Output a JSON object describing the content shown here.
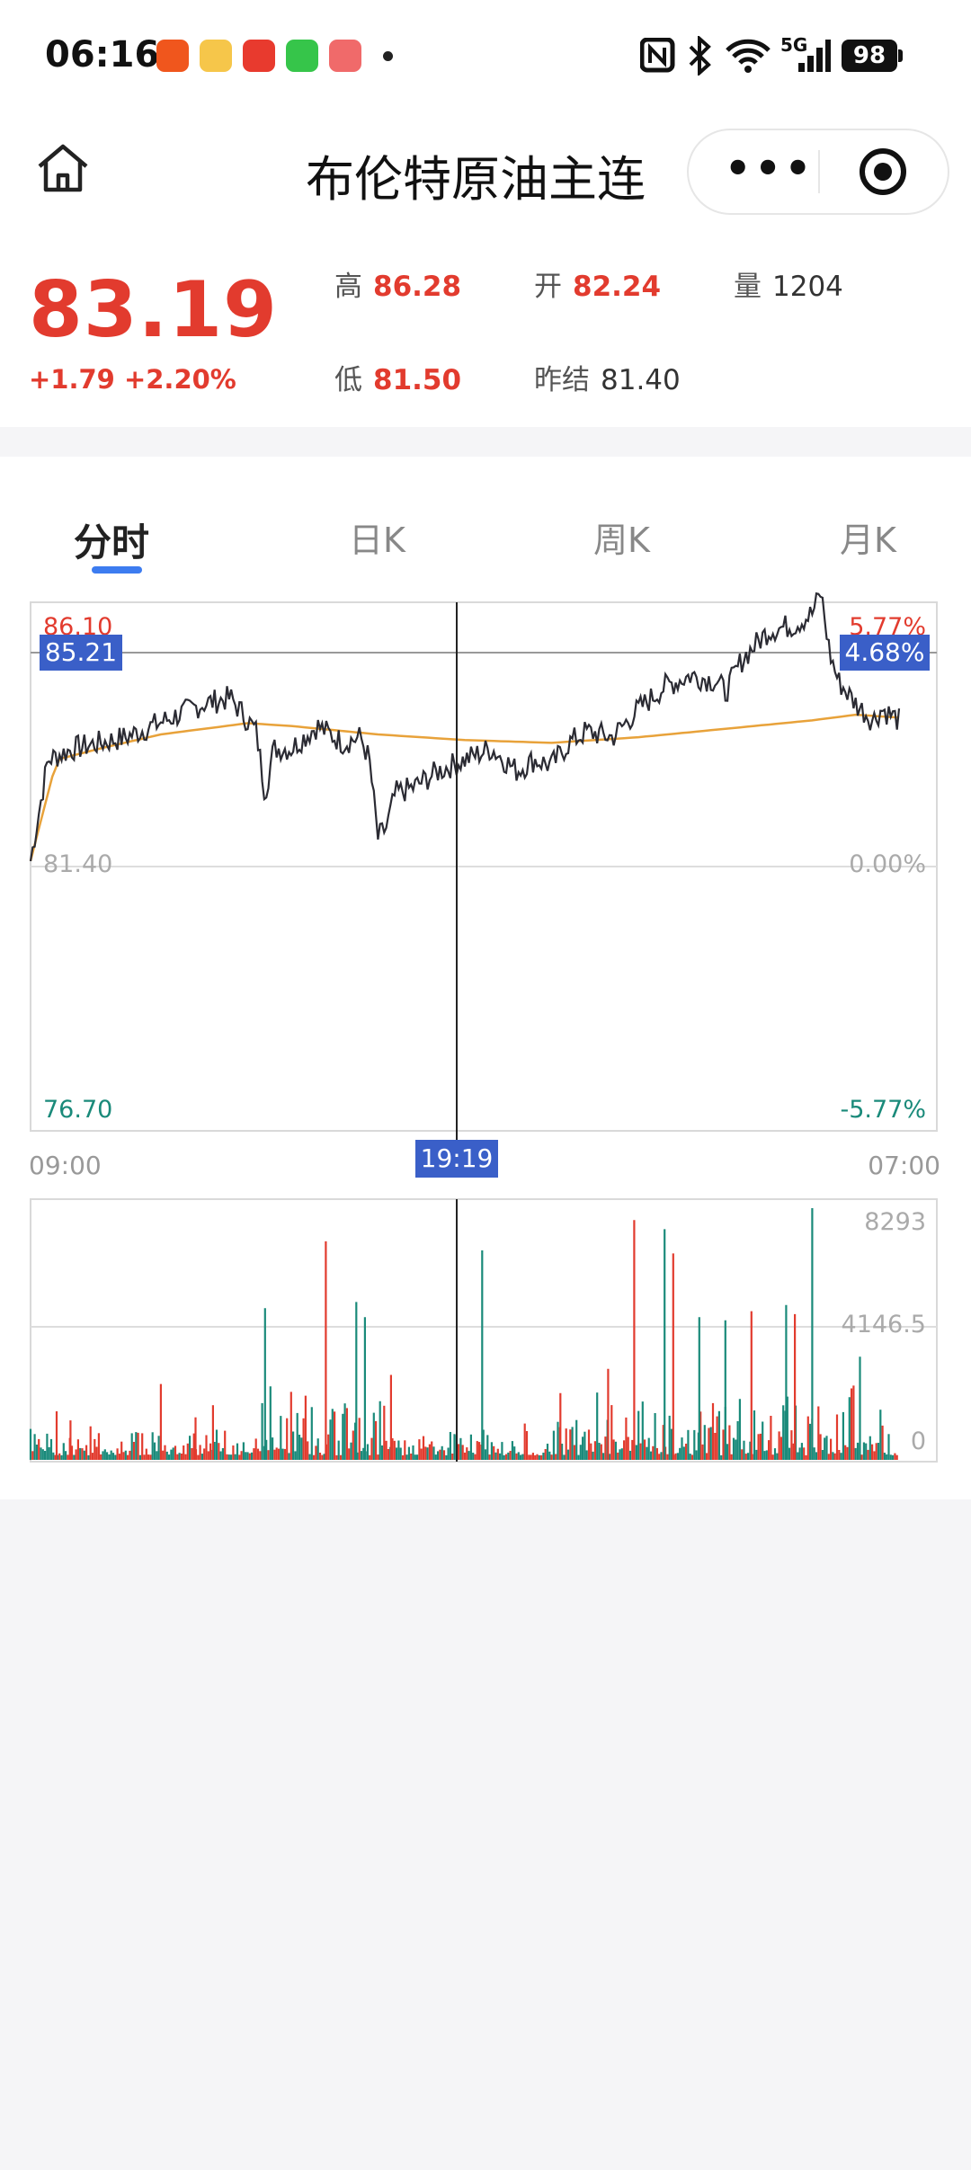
{
  "status_bar": {
    "time": "06:16",
    "battery": "98",
    "network": "5G"
  },
  "nav": {
    "title": "布伦特原油主连",
    "more_label": "•••"
  },
  "quote": {
    "price": "83.19",
    "change": "+1.79 +2.20%",
    "high_label": "高",
    "high": "86.28",
    "open_label": "开",
    "open": "82.24",
    "volume_label": "量",
    "volume": "1204",
    "low_label": "低",
    "low": "81.50",
    "prev_settle_label": "昨结",
    "prev_settle": "81.40"
  },
  "tabs": [
    {
      "label": "分时",
      "active": true
    },
    {
      "label": "日K",
      "active": false
    },
    {
      "label": "周K",
      "active": false
    },
    {
      "label": "月K",
      "active": false
    }
  ],
  "colors": {
    "up": "#e23b2e",
    "down": "#1a8a7a",
    "price_line": "#2b2b33",
    "avg_line": "#e8a23a",
    "crosshair_tag": "#3a5fc8"
  },
  "chart_data": {
    "type": "line",
    "price_panel": {
      "y_left_labels": {
        "top": "86.10",
        "mid": "81.40",
        "bottom": "76.70"
      },
      "y_right_labels": {
        "top": "5.77%",
        "mid": "0.00%",
        "bottom": "-5.77%"
      },
      "ylim": [
        76.7,
        86.1
      ],
      "x_start": "09:00",
      "x_end": "07:00",
      "crosshair": {
        "time": "19:19",
        "price": "85.21",
        "pct": "4.68%"
      },
      "price_series_t": [
        0,
        0.02,
        0.05,
        0.08,
        0.11,
        0.14,
        0.17,
        0.2,
        0.23,
        0.26,
        0.27,
        0.28,
        0.3,
        0.33,
        0.36,
        0.38,
        0.39,
        0.4,
        0.41,
        0.42,
        0.44,
        0.47,
        0.5,
        0.53,
        0.56,
        0.58,
        0.6,
        0.62,
        0.64,
        0.67,
        0.7,
        0.73,
        0.76,
        0.79,
        0.8,
        0.82,
        0.85,
        0.88,
        0.9,
        0.91,
        0.92,
        0.93,
        0.95,
        0.97,
        0.98,
        1.0
      ],
      "price_series": [
        81.5,
        83.3,
        83.5,
        83.6,
        83.7,
        83.9,
        84.1,
        84.3,
        84.4,
        83.8,
        82.7,
        83.5,
        83.5,
        83.9,
        83.6,
        83.7,
        83.3,
        81.9,
        82.1,
        82.7,
        82.8,
        83.1,
        83.3,
        83.5,
        83.1,
        83.3,
        83.2,
        83.6,
        83.8,
        83.7,
        84.2,
        84.6,
        84.8,
        84.7,
        84.5,
        85.1,
        85.6,
        85.7,
        85.9,
        86.28,
        85.2,
        84.7,
        84.3,
        84.0,
        84.2,
        84.0
      ],
      "avg_series_t": [
        0,
        0.03,
        0.08,
        0.15,
        0.25,
        0.3,
        0.4,
        0.5,
        0.6,
        0.7,
        0.8,
        0.9,
        0.95,
        1.0
      ],
      "avg_series": [
        81.5,
        83.3,
        83.5,
        83.75,
        83.95,
        83.9,
        83.75,
        83.65,
        83.6,
        83.7,
        83.85,
        84.0,
        84.1,
        84.05
      ]
    },
    "volume_panel": {
      "y_labels": [
        "8293",
        "4146.5",
        "0"
      ],
      "ylim": [
        0,
        8293
      ],
      "spikes": [
        {
          "t": 0.03,
          "v": 1600,
          "c": "up"
        },
        {
          "t": 0.046,
          "v": 1300,
          "c": "up"
        },
        {
          "t": 0.15,
          "v": 2500,
          "c": "up"
        },
        {
          "t": 0.19,
          "v": 1400,
          "c": "up"
        },
        {
          "t": 0.21,
          "v": 1800,
          "c": "up"
        },
        {
          "t": 0.27,
          "v": 5000,
          "c": "down"
        },
        {
          "t": 0.34,
          "v": 7200,
          "c": "up"
        },
        {
          "t": 0.375,
          "v": 5200,
          "c": "down"
        },
        {
          "t": 0.385,
          "v": 4700,
          "c": "down"
        },
        {
          "t": 0.415,
          "v": 2800,
          "c": "up"
        },
        {
          "t": 0.52,
          "v": 6900,
          "c": "down"
        },
        {
          "t": 0.61,
          "v": 2200,
          "c": "up"
        },
        {
          "t": 0.665,
          "v": 3000,
          "c": "up"
        },
        {
          "t": 0.695,
          "v": 7900,
          "c": "up"
        },
        {
          "t": 0.73,
          "v": 7600,
          "c": "down"
        },
        {
          "t": 0.74,
          "v": 6800,
          "c": "up"
        },
        {
          "t": 0.77,
          "v": 4700,
          "c": "down"
        },
        {
          "t": 0.8,
          "v": 4600,
          "c": "down"
        },
        {
          "t": 0.83,
          "v": 4900,
          "c": "up"
        },
        {
          "t": 0.87,
          "v": 5100,
          "c": "down"
        },
        {
          "t": 0.88,
          "v": 4800,
          "c": "up"
        },
        {
          "t": 0.9,
          "v": 8293,
          "c": "down"
        },
        {
          "t": 0.955,
          "v": 3400,
          "c": "down"
        }
      ]
    }
  }
}
